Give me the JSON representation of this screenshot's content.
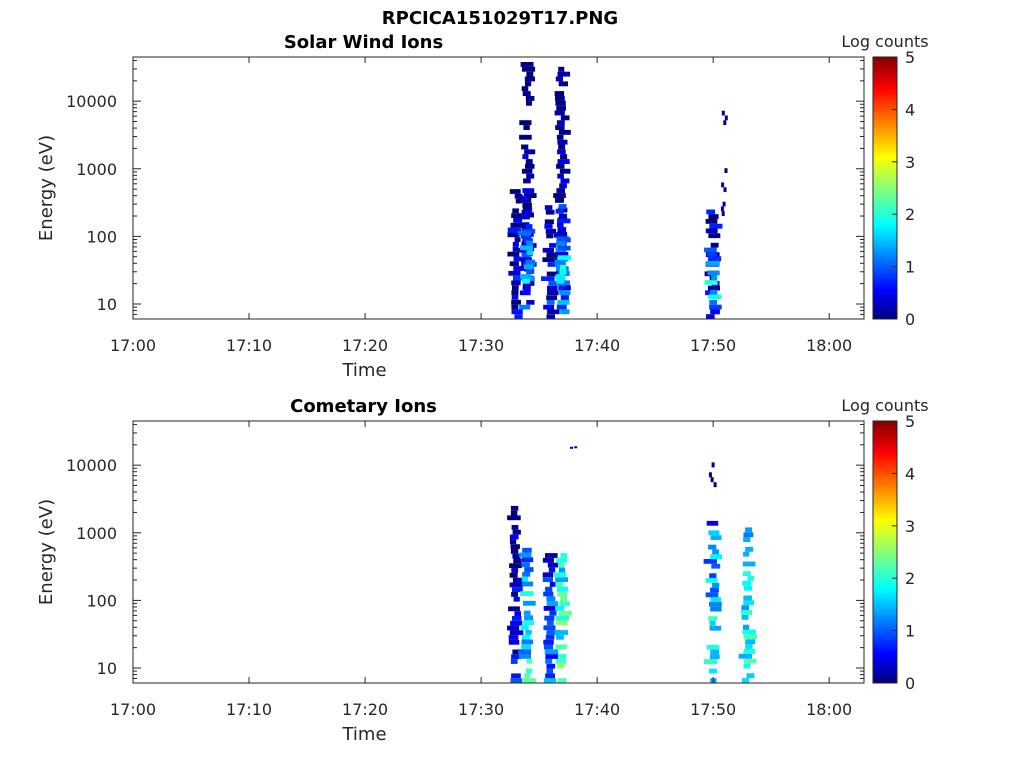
{
  "figure": {
    "title": "RPCICA151029T17.PNG",
    "colormap": [
      "#00007f",
      "#0000ff",
      "#007fff",
      "#00ffff",
      "#7fff7f",
      "#ffff00",
      "#ff7f00",
      "#ff0000",
      "#7f0000"
    ]
  },
  "chart_data": [
    {
      "type": "heatmap",
      "title": "Solar Wind Ions",
      "xlabel": "Time",
      "ylabel": "Energy (eV)",
      "xlim": [
        "17:00",
        "18:03"
      ],
      "ylim": [
        6,
        45000
      ],
      "yscale": "log",
      "xticks": [
        "17:00",
        "17:10",
        "17:20",
        "17:30",
        "17:40",
        "17:50",
        "18:00"
      ],
      "yticks": [
        10,
        100,
        1000,
        10000
      ],
      "ytick_labels": [
        "10",
        "100",
        "1000",
        "10000"
      ],
      "colorbar": {
        "label": "Log counts",
        "range": [
          0,
          5
        ],
        "ticks": [
          "0",
          "1",
          "2",
          "3",
          "4",
          "5"
        ]
      },
      "cells": [
        {
          "t": "17:34",
          "e": [
            16,
            38000
          ],
          "v": 0.3,
          "n": 1
        },
        {
          "t": "17:37",
          "e": [
            16,
            38000
          ],
          "v": 0.3,
          "n": 1
        },
        {
          "t": "17:33",
          "e": [
            6,
            500
          ],
          "v": 0.6,
          "n": 1
        },
        {
          "t": "17:34",
          "e": [
            6,
            400
          ],
          "v": 1.0,
          "n": 1
        },
        {
          "t": "17:36",
          "e": [
            6,
            400
          ],
          "v": 0.7,
          "n": 1
        },
        {
          "t": "17:37",
          "e": [
            6,
            300
          ],
          "v": 1.3,
          "n": 1
        },
        {
          "t": "17:34",
          "e": [
            20,
            120
          ],
          "v": 1.7,
          "n": 1
        },
        {
          "t": "17:37",
          "e": [
            20,
            100
          ],
          "v": 1.9,
          "n": 1
        },
        {
          "t": "17:50",
          "e": [
            6,
            250
          ],
          "v": 0.9,
          "n": 1
        },
        {
          "t": "17:50",
          "e": [
            10,
            60
          ],
          "v": 1.9,
          "n": 1
        },
        {
          "t": "17:51",
          "e": [
            200,
            10000
          ],
          "v": 0.1,
          "n": 0
        }
      ]
    },
    {
      "type": "heatmap",
      "title": "Cometary Ions",
      "xlabel": "Time",
      "ylabel": "Energy (eV)",
      "xlim": [
        "17:00",
        "18:03"
      ],
      "ylim": [
        6,
        45000
      ],
      "yscale": "log",
      "xticks": [
        "17:00",
        "17:10",
        "17:20",
        "17:30",
        "17:40",
        "17:50",
        "18:00"
      ],
      "yticks": [
        10,
        100,
        1000,
        10000
      ],
      "ytick_labels": [
        "10",
        "100",
        "1000",
        "10000"
      ],
      "colorbar": {
        "label": "Log counts",
        "range": [
          0,
          5
        ],
        "ticks": [
          "0",
          "1",
          "2",
          "3",
          "4",
          "5"
        ]
      },
      "cells": [
        {
          "t": "17:33",
          "e": [
            6,
            2500
          ],
          "v": 0.5,
          "n": 1
        },
        {
          "t": "17:34",
          "e": [
            6,
            600
          ],
          "v": 1.8,
          "n": 1
        },
        {
          "t": "17:36",
          "e": [
            6,
            500
          ],
          "v": 1.2,
          "n": 1
        },
        {
          "t": "17:37",
          "e": [
            6,
            500
          ],
          "v": 2.3,
          "n": 1
        },
        {
          "t": "17:38",
          "e": [
            18000,
            19000
          ],
          "v": 0.2,
          "n": 0
        },
        {
          "t": "17:50",
          "e": [
            6,
            1500
          ],
          "v": 1.8,
          "n": 1
        },
        {
          "t": "17:53",
          "e": [
            6,
            1200
          ],
          "v": 2.0,
          "n": 1
        },
        {
          "t": "17:50",
          "e": [
            4000,
            11000
          ],
          "v": 0.1,
          "n": 0
        }
      ]
    }
  ]
}
